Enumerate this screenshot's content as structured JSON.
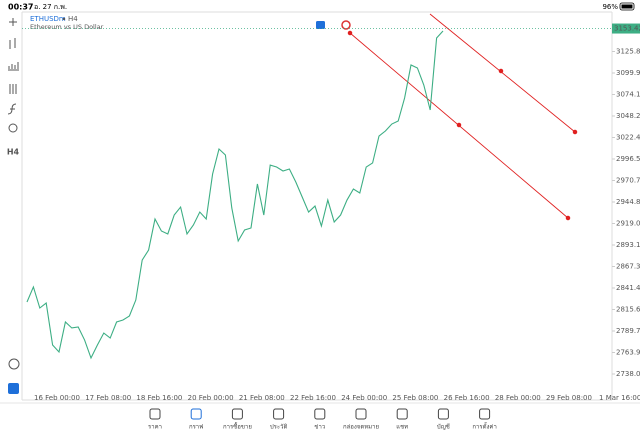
{
  "status_bar": {
    "time": "00:37",
    "date": "อ. 27 ก.พ.",
    "battery": "96%"
  },
  "chart_header": {
    "symbol": "ETHUSDm",
    "timeframe": "H4",
    "description": "Ethereum vs US Dollar"
  },
  "toolbar": {
    "timeframe": "H4"
  },
  "chart_data": {
    "type": "line",
    "x_labels": [
      "16 Feb 00:00",
      "17 Feb 08:00",
      "18 Feb 16:00",
      "20 Feb 00:00",
      "21 Feb 08:00",
      "22 Feb 16:00",
      "24 Feb 00:00",
      "25 Feb 08:00",
      "26 Feb 16:00",
      "28 Feb 00:00",
      "29 Feb 08:00",
      "1 Mar 16:00"
    ],
    "series": [
      {
        "color": "#3dae84",
        "values": [
          2824.6,
          2842.7,
          2817.4,
          2823.4,
          2772.9,
          2764.5,
          2800.6,
          2793.4,
          2794.6,
          2778.9,
          2757.3,
          2772.9,
          2787.3,
          2781.3,
          2800.6,
          2803.0,
          2807.8,
          2827.0,
          2875.1,
          2887.1,
          2924.4,
          2910.0,
          2906.4,
          2929.2,
          2938.8,
          2906.4,
          2917.2,
          2932.8,
          2924.4,
          2978.5,
          3008.6,
          3001.4,
          2937.6,
          2898.0,
          2911.2,
          2913.6,
          2966.5,
          2929.2,
          2989.3,
          2986.9,
          2982.1,
          2984.5,
          2968.9,
          2950.9,
          2932.8,
          2940.0,
          2916.0,
          2947.2,
          2920.8,
          2929.2,
          2947.2,
          2960.5,
          2955.7,
          2986.9,
          2991.8,
          3024.2,
          3030.2,
          3038.6,
          3042.2,
          3069.9,
          3109.6,
          3106.0,
          3085.5,
          3055.5,
          3142.0,
          3150.4
        ]
      }
    ],
    "ylim": [
      2706.8,
      3173.3
    ],
    "yticks": [
      {
        "value": 3125.8,
        "label": "3125.80"
      },
      {
        "value": 3099.95,
        "label": "3099.95"
      },
      {
        "value": 3074.1,
        "label": "3074.10"
      },
      {
        "value": 3048.25,
        "label": "3048.25"
      },
      {
        "value": 3022.4,
        "label": "3022.40"
      },
      {
        "value": 2996.55,
        "label": "2996.55"
      },
      {
        "value": 2970.7,
        "label": "2970.70"
      },
      {
        "value": 2944.85,
        "label": "2944.85"
      },
      {
        "value": 2919,
        "label": "2919.00"
      },
      {
        "value": 2893.15,
        "label": "2893.15"
      },
      {
        "value": 2867.3,
        "label": "2867.30"
      },
      {
        "value": 2841.45,
        "label": "2841.45"
      },
      {
        "value": 2815.6,
        "label": "2815.60"
      },
      {
        "value": 2789.75,
        "label": "2789.75"
      },
      {
        "value": 2763.9,
        "label": "2763.90"
      },
      {
        "value": 2738.05,
        "label": "2738.05"
      }
    ],
    "last_price": 3153.42
  },
  "nav": {
    "items": [
      "ราคา",
      "กราฟ",
      "การซื้อขาย",
      "ประวัติ",
      "ข่าว",
      "กล่องจดหมาย",
      "แชท",
      "บัญชี",
      "การตั้งค่า"
    ],
    "active": 1
  }
}
